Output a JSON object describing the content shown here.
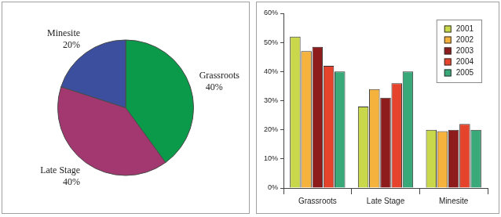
{
  "chart_data": [
    {
      "type": "pie",
      "categories": [
        "Grassroots",
        "Late Stage",
        "Minesite"
      ],
      "values": [
        40,
        40,
        20
      ],
      "value_labels": [
        "40%",
        "40%",
        "20%"
      ],
      "colors": [
        "#0a9a4a",
        "#a3376f",
        "#3b4f9e"
      ],
      "data_labels": true
    },
    {
      "type": "bar",
      "categories": [
        "Grassroots",
        "Late Stage",
        "Minesite"
      ],
      "series": [
        {
          "name": "2001",
          "color": "#c9d84b",
          "values": [
            52,
            28,
            20
          ]
        },
        {
          "name": "2002",
          "color": "#f5b23c",
          "values": [
            47,
            34,
            19.5
          ]
        },
        {
          "name": "2003",
          "color": "#8e1c1c",
          "values": [
            48.5,
            31,
            20
          ]
        },
        {
          "name": "2004",
          "color": "#e5432b",
          "values": [
            42,
            36,
            22
          ]
        },
        {
          "name": "2005",
          "color": "#3aa97a",
          "values": [
            40,
            40,
            20
          ]
        }
      ],
      "ylim": [
        0,
        60
      ],
      "yticks": [
        {
          "value": 0,
          "label": "0%"
        },
        {
          "value": 10,
          "label": "10%"
        },
        {
          "value": 20,
          "label": "20%"
        },
        {
          "value": 30,
          "label": "30%"
        },
        {
          "value": 40,
          "label": "40%"
        },
        {
          "value": 50,
          "label": "50%"
        },
        {
          "value": 60,
          "label": "60%"
        }
      ],
      "grid": false,
      "legend": "upper right"
    }
  ]
}
